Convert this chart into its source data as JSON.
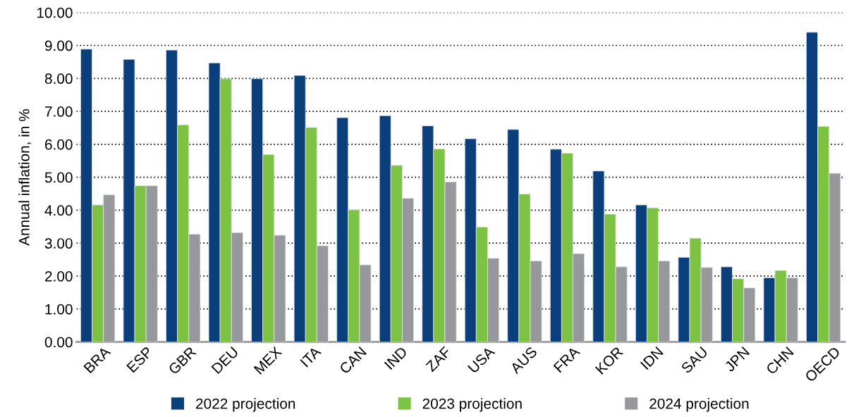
{
  "chart_data": {
    "type": "bar",
    "ylabel": "Annual inflation, in %",
    "categories": [
      "BRA",
      "ESP",
      "GBR",
      "DEU",
      "MEX",
      "ITA",
      "CAN",
      "IND",
      "ZAF",
      "USA",
      "AUS",
      "FRA",
      "KOR",
      "IDN",
      "SAU",
      "JPN",
      "CHN",
      "OECD"
    ],
    "series": [
      {
        "name": "2022 projection",
        "color": "#0b3f7c",
        "values": [
          8.89,
          8.58,
          8.86,
          8.47,
          7.99,
          8.09,
          6.81,
          6.87,
          6.56,
          6.17,
          6.45,
          5.85,
          5.19,
          4.16,
          2.57,
          2.28,
          1.95,
          9.4
        ]
      },
      {
        "name": "2023 projection",
        "color": "#7dc242",
        "values": [
          4.16,
          4.74,
          6.59,
          7.99,
          5.69,
          6.51,
          4.01,
          5.36,
          5.86,
          3.49,
          4.49,
          5.73,
          3.88,
          4.07,
          3.15,
          1.92,
          2.17,
          6.54
        ]
      },
      {
        "name": "2024 projection",
        "color": "#97989b",
        "values": [
          4.47,
          4.74,
          3.27,
          3.32,
          3.24,
          2.92,
          2.34,
          4.36,
          4.86,
          2.54,
          2.46,
          2.68,
          2.28,
          2.46,
          2.26,
          1.64,
          1.95,
          5.12
        ]
      }
    ],
    "ylim": [
      0,
      10
    ],
    "yticks": [
      {
        "value": 0,
        "label": "0.00"
      },
      {
        "value": 1,
        "label": "1.00"
      },
      {
        "value": 2,
        "label": "2.00"
      },
      {
        "value": 3,
        "label": "3.00"
      },
      {
        "value": 4,
        "label": "4.00"
      },
      {
        "value": 5,
        "label": "5.00"
      },
      {
        "value": 6,
        "label": "6.00"
      },
      {
        "value": 7,
        "label": "7.00"
      },
      {
        "value": 8,
        "label": "8.00"
      },
      {
        "value": 9,
        "label": "9.00"
      },
      {
        "value": 10,
        "label": "10.00"
      }
    ],
    "grid": "y",
    "legend": "bottom"
  }
}
